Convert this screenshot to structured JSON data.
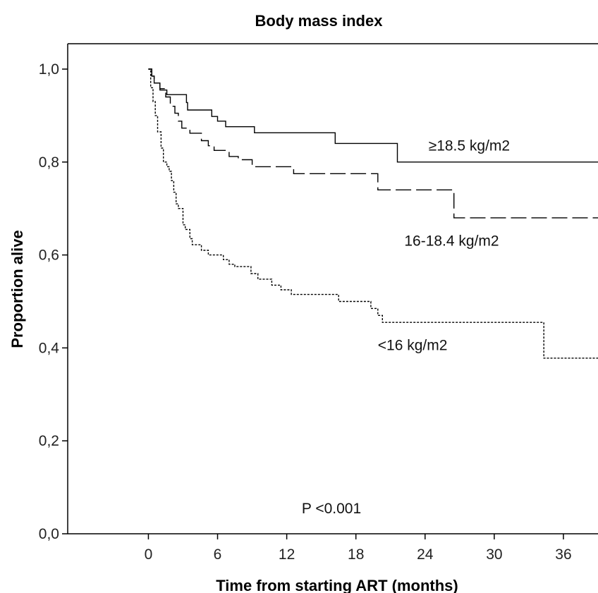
{
  "chart_data": {
    "type": "line",
    "title": "Body mass index",
    "xlabel": "Time from starting ART (months)",
    "ylabel": "Proportion alive",
    "xlim": [
      -7,
      39
    ],
    "ylim": [
      0,
      1.0
    ],
    "x_ticks": [
      {
        "value": 0,
        "label": "0"
      },
      {
        "value": 6,
        "label": "6"
      },
      {
        "value": 12,
        "label": "12"
      },
      {
        "value": 18,
        "label": "18"
      },
      {
        "value": 24,
        "label": "24"
      },
      {
        "value": 30,
        "label": "30"
      },
      {
        "value": 36,
        "label": "36"
      }
    ],
    "y_ticks": [
      {
        "value": 0.0,
        "label": "0,0"
      },
      {
        "value": 0.2,
        "label": "0,2"
      },
      {
        "value": 0.4,
        "label": "0,4"
      },
      {
        "value": 0.6,
        "label": "0,6"
      },
      {
        "value": 0.8,
        "label": "0,8"
      },
      {
        "value": 1.0,
        "label": "1,0"
      }
    ],
    "grid": false,
    "legend": "none",
    "annotation": "P <0.001",
    "series": [
      {
        "name": "≥18.5 kg/m2",
        "line_style": "solid",
        "label_at": {
          "x": 24.3,
          "y": 0.825
        },
        "points": [
          [
            0,
            1.0
          ],
          [
            0.3,
            1.0
          ],
          [
            0.3,
            0.985
          ],
          [
            0.5,
            0.985
          ],
          [
            0.5,
            0.97
          ],
          [
            1.0,
            0.97
          ],
          [
            1.0,
            0.955
          ],
          [
            1.6,
            0.955
          ],
          [
            1.6,
            0.945
          ],
          [
            3.3,
            0.945
          ],
          [
            3.3,
            0.928
          ],
          [
            3.4,
            0.928
          ],
          [
            3.4,
            0.912
          ],
          [
            5.5,
            0.912
          ],
          [
            5.5,
            0.898
          ],
          [
            6.0,
            0.898
          ],
          [
            6.0,
            0.888
          ],
          [
            6.7,
            0.888
          ],
          [
            6.7,
            0.876
          ],
          [
            9.2,
            0.876
          ],
          [
            9.2,
            0.863
          ],
          [
            16.2,
            0.863
          ],
          [
            16.2,
            0.84
          ],
          [
            21.6,
            0.84
          ],
          [
            21.6,
            0.8
          ],
          [
            39,
            0.8
          ]
        ]
      },
      {
        "name": "16-18.4 kg/m2",
        "line_style": "dashed",
        "label_at": {
          "x": 22.2,
          "y": 0.62
        },
        "points": [
          [
            0,
            1.0
          ],
          [
            0.3,
            1.0
          ],
          [
            0.3,
            0.985
          ],
          [
            0.5,
            0.985
          ],
          [
            0.5,
            0.97
          ],
          [
            1.0,
            0.97
          ],
          [
            1.0,
            0.958
          ],
          [
            1.5,
            0.958
          ],
          [
            1.5,
            0.94
          ],
          [
            1.9,
            0.94
          ],
          [
            1.9,
            0.92
          ],
          [
            2.3,
            0.92
          ],
          [
            2.3,
            0.905
          ],
          [
            2.6,
            0.905
          ],
          [
            2.6,
            0.888
          ],
          [
            2.9,
            0.888
          ],
          [
            2.9,
            0.873
          ],
          [
            3.6,
            0.873
          ],
          [
            3.6,
            0.862
          ],
          [
            4.6,
            0.862
          ],
          [
            4.6,
            0.846
          ],
          [
            5.2,
            0.846
          ],
          [
            5.2,
            0.835
          ],
          [
            5.7,
            0.835
          ],
          [
            5.7,
            0.825
          ],
          [
            7.0,
            0.825
          ],
          [
            7.0,
            0.812
          ],
          [
            7.8,
            0.812
          ],
          [
            7.8,
            0.805
          ],
          [
            9.0,
            0.805
          ],
          [
            9.0,
            0.79
          ],
          [
            12.6,
            0.79
          ],
          [
            12.6,
            0.775
          ],
          [
            19.9,
            0.775
          ],
          [
            19.9,
            0.74
          ],
          [
            26.5,
            0.74
          ],
          [
            26.5,
            0.68
          ],
          [
            39,
            0.68
          ]
        ]
      },
      {
        "name": "<16 kg/m2",
        "line_style": "dotted",
        "label_at": {
          "x": 19.9,
          "y": 0.395
        },
        "points": [
          [
            0,
            1.0
          ],
          [
            0.2,
            1.0
          ],
          [
            0.2,
            0.96
          ],
          [
            0.4,
            0.96
          ],
          [
            0.4,
            0.93
          ],
          [
            0.6,
            0.93
          ],
          [
            0.6,
            0.9
          ],
          [
            0.8,
            0.9
          ],
          [
            0.8,
            0.865
          ],
          [
            1.1,
            0.865
          ],
          [
            1.1,
            0.83
          ],
          [
            1.3,
            0.83
          ],
          [
            1.3,
            0.8
          ],
          [
            1.6,
            0.8
          ],
          [
            1.6,
            0.79
          ],
          [
            1.8,
            0.79
          ],
          [
            1.8,
            0.78
          ],
          [
            2.0,
            0.78
          ],
          [
            2.0,
            0.76
          ],
          [
            2.2,
            0.76
          ],
          [
            2.2,
            0.735
          ],
          [
            2.4,
            0.735
          ],
          [
            2.4,
            0.71
          ],
          [
            2.6,
            0.71
          ],
          [
            2.6,
            0.7
          ],
          [
            3.0,
            0.7
          ],
          [
            3.0,
            0.665
          ],
          [
            3.2,
            0.665
          ],
          [
            3.2,
            0.655
          ],
          [
            3.6,
            0.655
          ],
          [
            3.6,
            0.635
          ],
          [
            3.8,
            0.635
          ],
          [
            3.8,
            0.622
          ],
          [
            4.6,
            0.622
          ],
          [
            4.6,
            0.61
          ],
          [
            5.2,
            0.61
          ],
          [
            5.2,
            0.6
          ],
          [
            6.5,
            0.6
          ],
          [
            6.5,
            0.59
          ],
          [
            7.0,
            0.59
          ],
          [
            7.0,
            0.58
          ],
          [
            7.5,
            0.58
          ],
          [
            7.5,
            0.575
          ],
          [
            8.9,
            0.575
          ],
          [
            8.9,
            0.56
          ],
          [
            9.5,
            0.56
          ],
          [
            9.5,
            0.548
          ],
          [
            10.7,
            0.548
          ],
          [
            10.7,
            0.535
          ],
          [
            11.5,
            0.535
          ],
          [
            11.5,
            0.525
          ],
          [
            12.4,
            0.525
          ],
          [
            12.4,
            0.515
          ],
          [
            16.5,
            0.515
          ],
          [
            16.5,
            0.5
          ],
          [
            19.3,
            0.5
          ],
          [
            19.3,
            0.485
          ],
          [
            19.9,
            0.485
          ],
          [
            19.9,
            0.47
          ],
          [
            20.3,
            0.47
          ],
          [
            20.3,
            0.455
          ],
          [
            34.3,
            0.455
          ],
          [
            34.3,
            0.378
          ],
          [
            39,
            0.378
          ]
        ]
      }
    ]
  }
}
